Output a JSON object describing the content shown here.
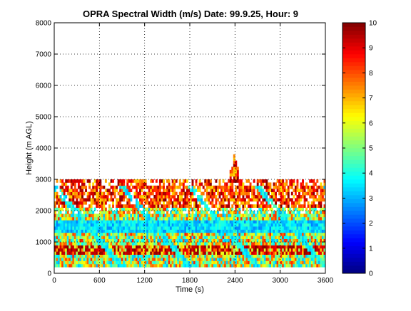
{
  "chart_data": {
    "type": "heatmap",
    "title": "OPRA Spectral Width (m/s)  Date: 99.9.25, Hour: 9",
    "xlabel": "Time (s)",
    "ylabel": "Height (m AGL)",
    "xlim": [
      0,
      3600
    ],
    "ylim": [
      0,
      8000
    ],
    "xticks": [
      0,
      600,
      1200,
      1800,
      2400,
      3000,
      3600
    ],
    "yticks": [
      0,
      1000,
      2000,
      3000,
      4000,
      5000,
      6000,
      7000,
      8000
    ],
    "grid": true,
    "colorbar": {
      "range": [
        0,
        10
      ],
      "ticks": [
        0,
        1,
        2,
        3,
        4,
        5,
        6,
        7,
        8,
        9,
        10
      ],
      "colormap": "jet"
    },
    "data_extent": {
      "height_top_typical_m": 3000,
      "plume_time_s": [
        2300,
        2460
      ],
      "plume_top_m": 3800
    },
    "features": [
      {
        "desc": "low spectral width band (cyan/blue)",
        "height_m": [
          1300,
          1600
        ],
        "value": 3
      },
      {
        "desc": "high spectral width band (dark red)",
        "height_m": [
          600,
          800
        ],
        "value": 9.5
      }
    ]
  },
  "colors": {
    "axes_bg": "#ffffff",
    "grid": "#000000"
  }
}
